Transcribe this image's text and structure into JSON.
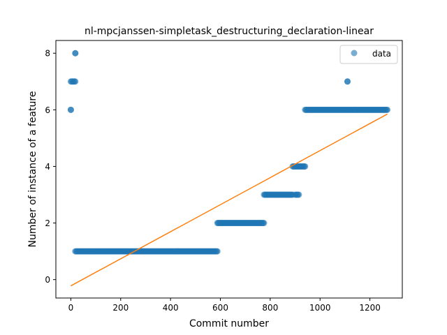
{
  "chart_data": {
    "type": "scatter",
    "title": "nl-mpcjanssen-simpletask_destructuring_declaration-linear",
    "xlabel": "Commit number",
    "ylabel": "Number of instance of a feature",
    "xlim": [
      -60,
      1330
    ],
    "ylim": [
      -0.65,
      8.45
    ],
    "xticks": [
      0,
      200,
      400,
      600,
      800,
      1000,
      1200
    ],
    "yticks": [
      0,
      2,
      4,
      6,
      8
    ],
    "grid": false,
    "legend": {
      "position": "top-right",
      "entries": [
        "data"
      ]
    },
    "colors": {
      "data": "#1f77b4",
      "fit": "#ff7f0e"
    },
    "series": [
      {
        "name": "data",
        "kind": "scatter",
        "segments": [
          {
            "x_start": 0,
            "x_end": 0,
            "y": 6
          },
          {
            "x_start": 0,
            "x_end": 18,
            "y": 7
          },
          {
            "x_start": 18,
            "x_end": 18,
            "y": 8
          },
          {
            "x_start": 18,
            "x_end": 588,
            "y": 1
          },
          {
            "x_start": 588,
            "x_end": 775,
            "y": 2
          },
          {
            "x_start": 775,
            "x_end": 890,
            "y": 3
          },
          {
            "x_start": 900,
            "x_end": 915,
            "y": 3
          },
          {
            "x_start": 890,
            "x_end": 940,
            "y": 4
          },
          {
            "x_start": 940,
            "x_end": 1270,
            "y": 6
          },
          {
            "x_start": 1110,
            "x_end": 1110,
            "y": 7
          }
        ]
      },
      {
        "kind": "line",
        "points": [
          [
            0,
            -0.22
          ],
          [
            1270,
            5.85
          ]
        ]
      }
    ]
  }
}
